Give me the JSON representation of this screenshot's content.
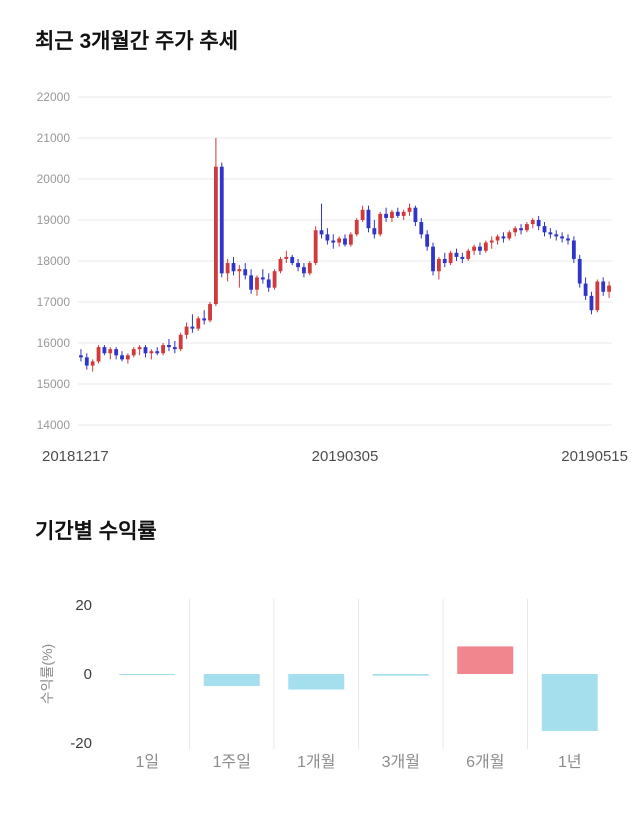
{
  "page": {
    "background": "#ffffff"
  },
  "chart_data": [
    {
      "type": "candlestick",
      "title": "최근 3개월간 주가 추세",
      "x_labels": [
        "20181217",
        "20190305",
        "20190515"
      ],
      "ylim": [
        14000,
        22000
      ],
      "y_ticks": [
        14000,
        15000,
        16000,
        17000,
        18000,
        19000,
        20000,
        21000,
        22000
      ],
      "grid": true,
      "legend": false,
      "up_color": "#d03a3a",
      "down_color": "#2e35c8",
      "grid_color": "#e8e8e8",
      "axis_text_color": "#999999",
      "x_label_color": "#4d4d4d",
      "series_format": [
        "open",
        "high",
        "low",
        "close"
      ],
      "candles": [
        [
          15700,
          15850,
          15550,
          15650
        ],
        [
          15650,
          15750,
          15350,
          15450
        ],
        [
          15450,
          15600,
          15300,
          15550
        ],
        [
          15550,
          15950,
          15500,
          15900
        ],
        [
          15900,
          15950,
          15700,
          15750
        ],
        [
          15750,
          15900,
          15600,
          15850
        ],
        [
          15850,
          15900,
          15600,
          15700
        ],
        [
          15700,
          15800,
          15550,
          15600
        ],
        [
          15600,
          15750,
          15500,
          15700
        ],
        [
          15700,
          15900,
          15650,
          15850
        ],
        [
          15850,
          15950,
          15700,
          15900
        ],
        [
          15900,
          15950,
          15650,
          15750
        ],
        [
          15750,
          15850,
          15600,
          15800
        ],
        [
          15800,
          15900,
          15700,
          15750
        ],
        [
          15750,
          16000,
          15700,
          15950
        ],
        [
          15950,
          16100,
          15800,
          15900
        ],
        [
          15900,
          16050,
          15750,
          15850
        ],
        [
          15850,
          16250,
          15800,
          16200
        ],
        [
          16200,
          16500,
          16100,
          16400
        ],
        [
          16400,
          16700,
          16250,
          16350
        ],
        [
          16350,
          16650,
          16300,
          16600
        ],
        [
          16600,
          16800,
          16450,
          16550
        ],
        [
          16550,
          17000,
          16500,
          16950
        ],
        [
          16950,
          21000,
          16900,
          20300
        ],
        [
          20300,
          20400,
          17600,
          17700
        ],
        [
          17700,
          18050,
          17500,
          17950
        ],
        [
          17950,
          18100,
          17650,
          17750
        ],
        [
          17750,
          17900,
          17350,
          17800
        ],
        [
          17800,
          17950,
          17550,
          17650
        ],
        [
          17650,
          17800,
          17200,
          17300
        ],
        [
          17300,
          17650,
          17150,
          17600
        ],
        [
          17600,
          17800,
          17450,
          17550
        ],
        [
          17550,
          17700,
          17250,
          17350
        ],
        [
          17350,
          17800,
          17300,
          17750
        ],
        [
          17750,
          18100,
          17700,
          18050
        ],
        [
          18050,
          18250,
          17950,
          18100
        ],
        [
          18100,
          18150,
          17900,
          17950
        ],
        [
          17950,
          18050,
          17750,
          17850
        ],
        [
          17850,
          17950,
          17600,
          17700
        ],
        [
          17700,
          18000,
          17650,
          17950
        ],
        [
          17950,
          18850,
          17900,
          18750
        ],
        [
          18750,
          19400,
          18550,
          18650
        ],
        [
          18650,
          18800,
          18400,
          18500
        ],
        [
          18500,
          18650,
          18300,
          18450
        ],
        [
          18450,
          18600,
          18350,
          18550
        ],
        [
          18550,
          18650,
          18350,
          18400
        ],
        [
          18400,
          18700,
          18350,
          18650
        ],
        [
          18650,
          19050,
          18600,
          19000
        ],
        [
          19000,
          19350,
          18950,
          19250
        ],
        [
          19250,
          19350,
          18700,
          18800
        ],
        [
          18800,
          19000,
          18550,
          18650
        ],
        [
          18650,
          19200,
          18600,
          19150
        ],
        [
          19150,
          19300,
          18950,
          19050
        ],
        [
          19050,
          19250,
          18950,
          19200
        ],
        [
          19200,
          19300,
          19050,
          19100
        ],
        [
          19100,
          19250,
          19000,
          19200
        ],
        [
          19200,
          19400,
          19100,
          19300
        ],
        [
          19300,
          19350,
          18850,
          18950
        ],
        [
          18950,
          19050,
          18550,
          18650
        ],
        [
          18650,
          18750,
          18250,
          18350
        ],
        [
          18350,
          18450,
          17650,
          17750
        ],
        [
          17750,
          18100,
          17550,
          18050
        ],
        [
          18050,
          18200,
          17850,
          17950
        ],
        [
          17950,
          18250,
          17900,
          18200
        ],
        [
          18200,
          18300,
          18000,
          18100
        ],
        [
          18100,
          18200,
          17950,
          18050
        ],
        [
          18050,
          18300,
          18000,
          18250
        ],
        [
          18250,
          18400,
          18150,
          18350
        ],
        [
          18350,
          18450,
          18150,
          18250
        ],
        [
          18250,
          18500,
          18200,
          18450
        ],
        [
          18450,
          18600,
          18300,
          18500
        ],
        [
          18500,
          18650,
          18400,
          18600
        ],
        [
          18600,
          18700,
          18450,
          18550
        ],
        [
          18550,
          18750,
          18500,
          18700
        ],
        [
          18700,
          18850,
          18600,
          18800
        ],
        [
          18800,
          18900,
          18650,
          18750
        ],
        [
          18750,
          18950,
          18700,
          18900
        ],
        [
          18900,
          19050,
          18800,
          19000
        ],
        [
          19000,
          19100,
          18750,
          18850
        ],
        [
          18850,
          18950,
          18600,
          18700
        ],
        [
          18700,
          18800,
          18550,
          18650
        ],
        [
          18650,
          18750,
          18500,
          18600
        ],
        [
          18600,
          18700,
          18450,
          18550
        ],
        [
          18550,
          18650,
          18400,
          18500
        ],
        [
          18500,
          18600,
          17950,
          18050
        ],
        [
          18050,
          18150,
          17350,
          17450
        ],
        [
          17450,
          17600,
          17050,
          17150
        ],
        [
          17150,
          17250,
          16700,
          16800
        ],
        [
          16800,
          17550,
          16750,
          17500
        ],
        [
          17500,
          17600,
          17150,
          17250
        ],
        [
          17250,
          17500,
          17100,
          17400
        ]
      ]
    },
    {
      "type": "bar",
      "title": "기간별 수익률",
      "ylabel": "수익률(%)",
      "categories": [
        "1일",
        "1주일",
        "1개월",
        "3개월",
        "6개월",
        "1년"
      ],
      "values": [
        0,
        -3.5,
        -4.5,
        -0.5,
        8,
        -16.5
      ],
      "y_ticks": [
        20,
        0,
        -20
      ],
      "ylim": [
        -20,
        20
      ],
      "grid": true,
      "legend": false,
      "positive_color": "#f2868e",
      "negative_color": "#a5dfee",
      "grid_color": "#e8e8e8",
      "tick_text_color": "#3c3c3c",
      "category_text_color": "#8c8c8c",
      "ylabel_color": "#8c8c8c"
    }
  ]
}
